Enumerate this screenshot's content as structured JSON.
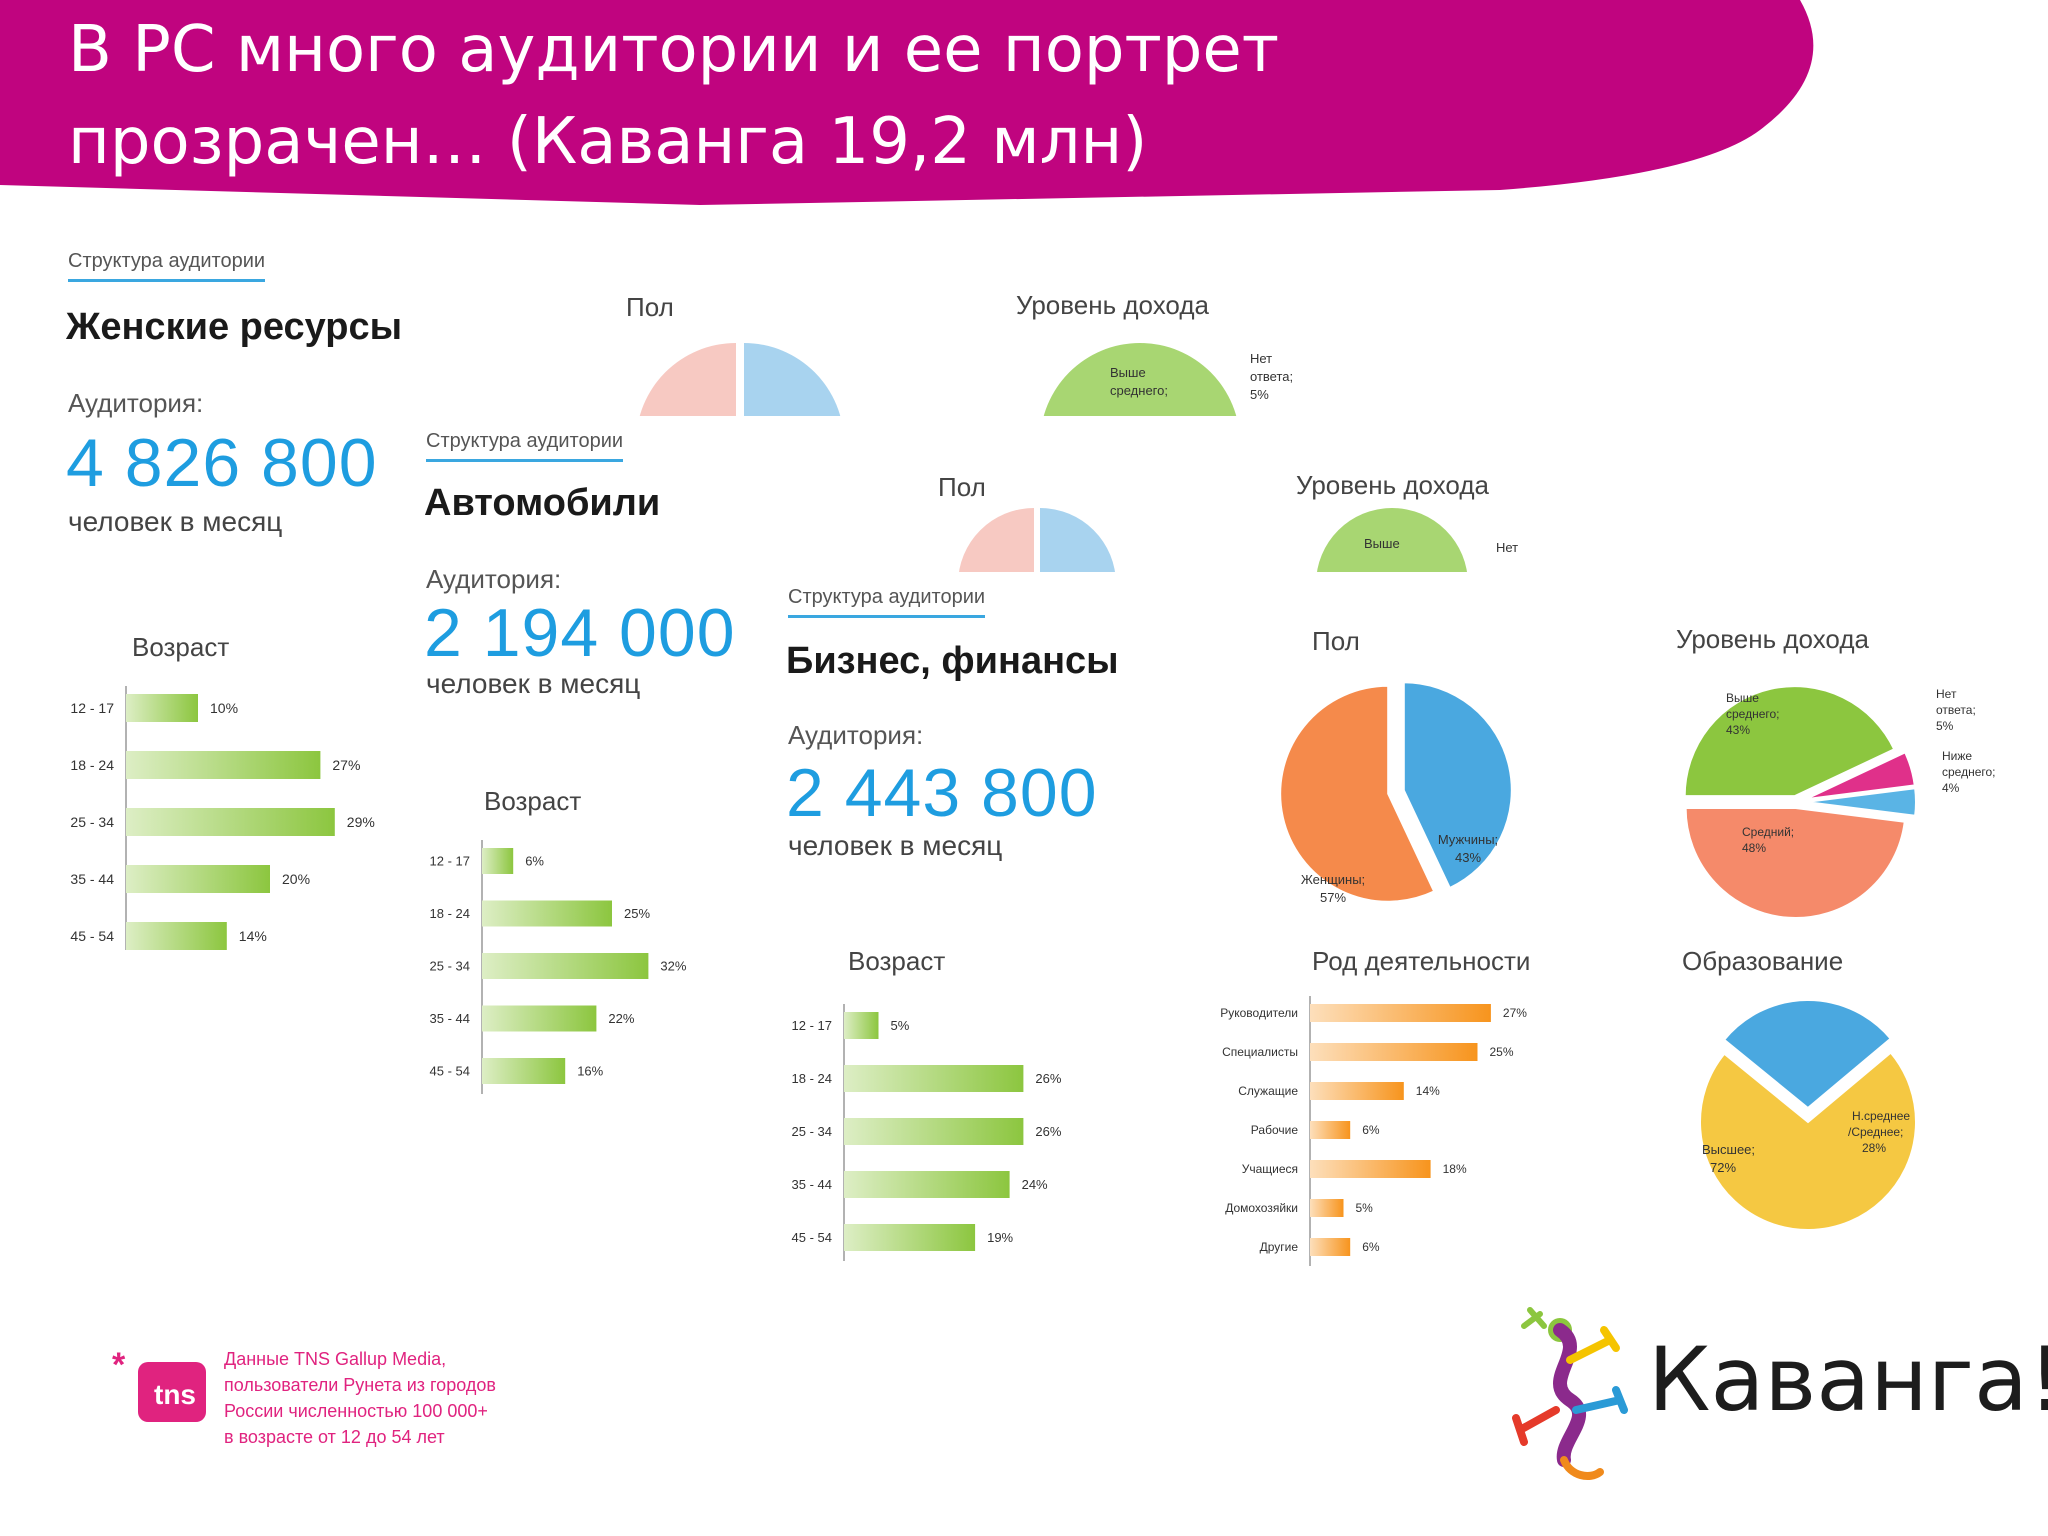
{
  "slide": {
    "title_line1": "В РС много аудитории и ее портрет",
    "title_line2": "прозрачен… (Каванга 19,2 млн)",
    "accent_color": "#c0047f"
  },
  "panels": [
    {
      "structure_label": "Структура аудитории",
      "name": "Женские ресурсы",
      "audience_label": "Аудитория:",
      "audience": "4 826 800",
      "per_month": "человек в месяц",
      "gender_title": "Пол",
      "income_title": "Уровень дохода",
      "income_labels": [
        "Выше",
        "среднего;",
        "Нет",
        "ответа;",
        "5%"
      ]
    },
    {
      "structure_label": "Структура аудитории",
      "name": "Автомобили",
      "audience_label": "Аудитория:",
      "audience": "2 194 000",
      "per_month": "человек в месяц",
      "gender_title": "Пол",
      "income_title": "Уровень дохода",
      "income_labels": [
        "Выше",
        "Нет"
      ]
    },
    {
      "structure_label": "Структура аудитории",
      "name": "Бизнес, финансы",
      "audience_label": "Аудитория:",
      "audience": "2 443 800",
      "per_month": "человек в месяц"
    }
  ],
  "chart_data": [
    {
      "type": "bar",
      "title": "Возраст",
      "categories": [
        "12 - 17",
        "18 - 24",
        "25 - 34",
        "35 - 44",
        "45 - 54"
      ],
      "values": [
        10,
        27,
        29,
        20,
        14
      ],
      "labels": [
        "10%",
        "27%",
        "29%",
        "20%",
        "14%"
      ],
      "color": "#8cc63f"
    },
    {
      "type": "bar",
      "title": "Возраст",
      "categories": [
        "12 - 17",
        "18 - 24",
        "25 - 34",
        "35 - 44",
        "45 - 54"
      ],
      "values": [
        6,
        25,
        32,
        22,
        16
      ],
      "labels": [
        "6%",
        "25%",
        "32%",
        "22%",
        "16%"
      ],
      "color": "#8cc63f"
    },
    {
      "type": "bar",
      "title": "Возраст",
      "categories": [
        "12 - 17",
        "18 - 24",
        "25 - 34",
        "35 - 44",
        "45 - 54"
      ],
      "values": [
        5,
        26,
        26,
        24,
        19
      ],
      "labels": [
        "5%",
        "26%",
        "26%",
        "24%",
        "19%"
      ],
      "color": "#8cc63f"
    },
    {
      "type": "pie",
      "title": "Пол",
      "slices": [
        {
          "label": "Мужчины;",
          "pct": "43%",
          "value": 43,
          "color": "#4aa8e0"
        },
        {
          "label": "Женщины;",
          "pct": "57%",
          "value": 57,
          "color": "#f58a4b"
        }
      ]
    },
    {
      "type": "pie",
      "title": "Уровень дохода",
      "slices": [
        {
          "label": "Выше среднего;",
          "pct": "43%",
          "value": 43,
          "color": "#8cc63f"
        },
        {
          "label": "Нет ответа;",
          "pct": "5%",
          "value": 5,
          "color": "#e0308a"
        },
        {
          "label": "Ниже среднего;",
          "pct": "4%",
          "value": 4,
          "color": "#5ab4e5"
        },
        {
          "label": "Средний;",
          "pct": "48%",
          "value": 48,
          "color": "#f58a6a"
        }
      ]
    },
    {
      "type": "bar",
      "title": "Род деятельности",
      "categories": [
        "Руководители",
        "Специалисты",
        "Служащие",
        "Рабочие",
        "Учащиеся",
        "Домохозяйки",
        "Другие"
      ],
      "values": [
        27,
        25,
        14,
        6,
        18,
        5,
        6
      ],
      "labels": [
        "27%",
        "25%",
        "14%",
        "6%",
        "18%",
        "5%",
        "6%"
      ],
      "color": "#f7941d"
    },
    {
      "type": "pie",
      "title": "Образование",
      "slices": [
        {
          "label": "Высшее;",
          "pct": "72%",
          "value": 72,
          "color": "#f5c842"
        },
        {
          "label": "Н.среднее /Среднее;",
          "pct": "28%",
          "value": 28,
          "color": "#4aa8e0"
        }
      ]
    }
  ],
  "footer": {
    "logo_text": "tns",
    "lines": [
      "Данные TNS Gallup Media,",
      "пользователи Рунета из городов",
      "России численностью 100 000+",
      "в возрасте от 12 до 54 лет"
    ]
  },
  "brand": {
    "name": "Каванга!"
  }
}
